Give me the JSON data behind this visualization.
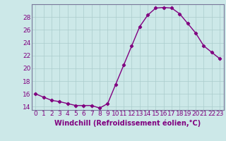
{
  "x": [
    0,
    1,
    2,
    3,
    4,
    5,
    6,
    7,
    8,
    9,
    10,
    11,
    12,
    13,
    14,
    15,
    16,
    17,
    18,
    19,
    20,
    21,
    22,
    23
  ],
  "y": [
    16.0,
    15.5,
    15.0,
    14.8,
    14.5,
    14.2,
    14.2,
    14.2,
    13.8,
    14.5,
    17.5,
    20.5,
    23.5,
    26.5,
    28.3,
    29.4,
    29.5,
    29.4,
    28.5,
    27.0,
    25.5,
    23.5,
    22.5,
    21.5
  ],
  "ylim": [
    13.5,
    30.0
  ],
  "yticks": [
    14,
    16,
    18,
    20,
    22,
    24,
    26,
    28
  ],
  "xlabel": "Windchill (Refroidissement éolien,°C)",
  "line_color": "#800080",
  "marker": "D",
  "marker_size": 2.2,
  "background_color": "#cce8e8",
  "grid_color": "#aacccc",
  "xlabel_fontsize": 7,
  "tick_fontsize": 6.5
}
